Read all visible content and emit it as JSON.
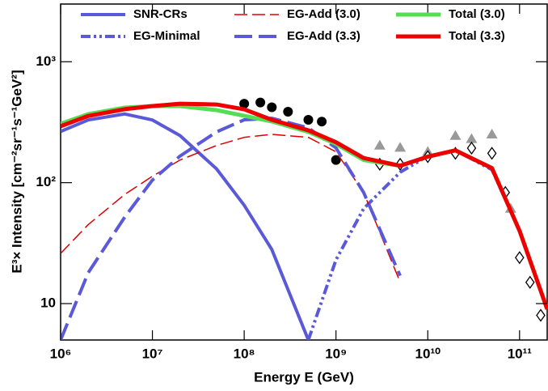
{
  "chart_data": {
    "type": "line",
    "xlabel": "Energy E (GeV)",
    "ylabel": "E³× Intensity [cm⁻²sr⁻¹s⁻¹GeV²]",
    "xscale": "log",
    "yscale": "log",
    "xlim": [
      1000000,
      200000000000
    ],
    "ylim": [
      5,
      3000
    ],
    "xticks": [
      {
        "value": 1000000,
        "label": "10⁶"
      },
      {
        "value": 10000000,
        "label": "10⁷"
      },
      {
        "value": 100000000,
        "label": "10⁸"
      },
      {
        "value": 1000000000,
        "label": "10⁹"
      },
      {
        "value": 10000000000,
        "label": "10¹⁰"
      },
      {
        "value": 100000000000,
        "label": "10¹¹"
      }
    ],
    "yticks": [
      10,
      {
        "value": 100,
        "label": "10²"
      },
      {
        "value": 1000,
        "label": "10³"
      }
    ],
    "x": [
      1000000,
      2000000,
      5000000,
      10000000,
      20000000,
      50000000,
      100000000,
      200000000,
      500000000,
      1000000000,
      2000000000,
      5000000000,
      10000000000,
      20000000000,
      50000000000,
      100000000000,
      200000000000
    ],
    "series": [
      {
        "name": "SNR-CRs",
        "color": "#5a5ad8",
        "style": "solid",
        "width": 4,
        "values": [
          265,
          330,
          370,
          330,
          245,
          130,
          65,
          28,
          5,
          null,
          null,
          null,
          null,
          null,
          null,
          null,
          null
        ]
      },
      {
        "name": "EG-Minimal",
        "color": "#5a5ad8",
        "style": "dash-dot-dot",
        "width": 4,
        "values": [
          null,
          null,
          null,
          null,
          null,
          null,
          null,
          null,
          5,
          23,
          61,
          122,
          166,
          185,
          128,
          40,
          9
        ]
      },
      {
        "name": "EG-Add (3.0)",
        "color": "#dd0000",
        "style": "dashed-thin",
        "width": 1.5,
        "values": [
          26,
          45,
          80,
          113,
          154,
          203,
          237,
          251,
          237,
          180,
          83,
          15,
          null,
          null,
          null,
          null,
          null
        ]
      },
      {
        "name": "EG-Add (3.3)",
        "color": "#5a5ad8",
        "style": "dashed",
        "width": 4,
        "values": [
          5,
          18,
          52,
          105,
          166,
          263,
          331,
          341,
          284,
          194,
          83,
          17,
          null,
          null,
          null,
          null,
          null
        ]
      },
      {
        "name": "Total (3.0)",
        "color": "#55dd55",
        "style": "solid",
        "width": 5,
        "values": [
          307,
          369,
          417,
          430,
          430,
          398,
          357,
          321,
          263,
          209,
          154,
          138,
          164,
          185,
          132,
          40,
          9
        ]
      },
      {
        "name": "Total (3.3)",
        "color": "#ee0000",
        "style": "solid",
        "width": 5,
        "values": [
          293,
          356,
          405,
          430,
          450,
          443,
          404,
          331,
          271,
          216,
          160,
          138,
          164,
          185,
          132,
          40,
          9
        ]
      }
    ],
    "markers": [
      {
        "shape": "circle",
        "color": "#000000",
        "x": [
          100000000,
          150000000,
          200000000,
          300000000,
          500000000,
          700000000,
          1000000000
        ],
        "y": [
          450,
          460,
          420,
          386,
          331,
          320,
          154
        ]
      },
      {
        "shape": "triangle",
        "color": "#999999",
        "x": [
          3000000000,
          5000000000,
          10000000000,
          20000000000,
          30000000000,
          50000000000,
          80000000000
        ],
        "y": [
          203,
          195,
          180,
          244,
          230,
          251,
          61
        ]
      },
      {
        "shape": "diamond",
        "color": "#000000",
        "x": [
          3000000000,
          5000000000,
          10000000000,
          20000000000,
          30000000000,
          50000000000,
          70000000000,
          100000000000,
          130000000000,
          170000000000
        ],
        "y": [
          142,
          142,
          164,
          175,
          193,
          175,
          83,
          24,
          15,
          8
        ]
      }
    ]
  }
}
